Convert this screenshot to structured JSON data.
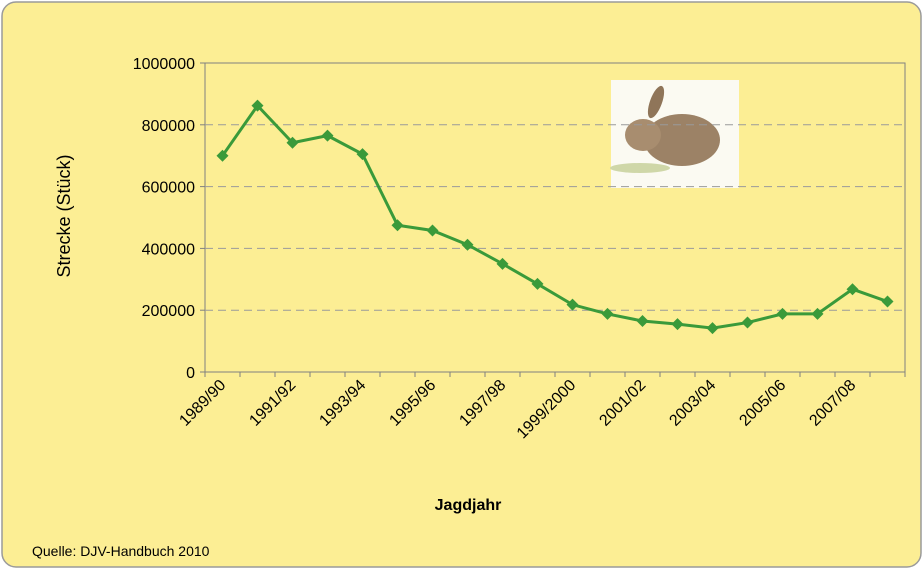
{
  "chart_data": {
    "type": "line",
    "y_label": "Strecke (Stück)",
    "x_label": "Jagdjahr",
    "source": "Quelle: DJV-Handbuch 2010",
    "categories": [
      "1989/90",
      null,
      "1991/92",
      null,
      "1993/94",
      null,
      "1995/96",
      null,
      "1997/98",
      null,
      "1999/2000",
      null,
      "2001/02",
      null,
      "2003/04",
      null,
      "2005/06",
      null,
      "2007/08",
      null
    ],
    "values": [
      700000,
      862000,
      742000,
      765000,
      705000,
      475000,
      458000,
      412000,
      350000,
      285000,
      218000,
      188000,
      165000,
      155000,
      142000,
      160000,
      188000,
      188000,
      268000,
      228000
    ],
    "color": "#3a9a3a",
    "ylim": [
      0,
      1000000
    ],
    "yticks": [
      0,
      200000,
      400000,
      600000,
      800000,
      1000000
    ],
    "grid": true
  }
}
